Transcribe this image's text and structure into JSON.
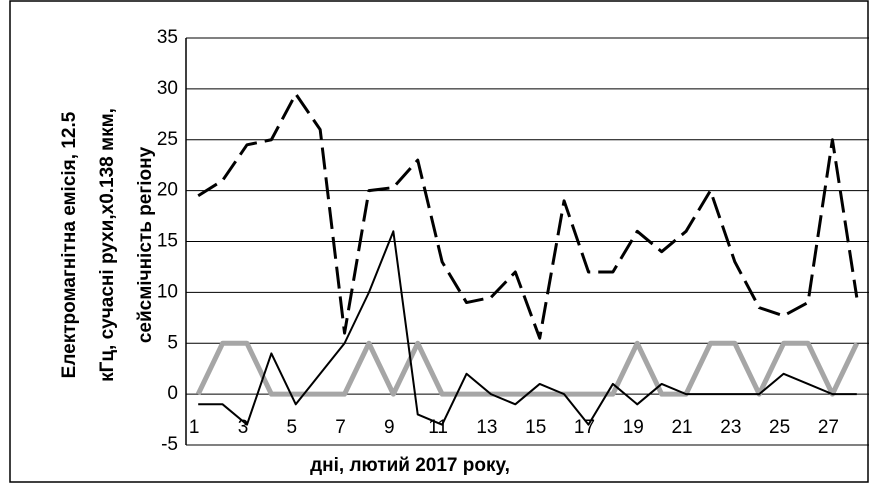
{
  "chart_data": {
    "type": "line",
    "ylabel": [
      "Електромагнітна емісія, 12.5",
      "кГц, сучасні рухи,х0.138 мкм,",
      "сейсмічність регіону"
    ],
    "xlabel": "дні, лютий 2017 року,",
    "categories": [
      "1",
      null,
      "3",
      null,
      "5",
      null,
      "7",
      null,
      "9",
      null,
      "11",
      null,
      "13",
      null,
      "15",
      null,
      "17",
      null,
      "19",
      null,
      "21",
      null,
      "23",
      null,
      "25",
      null,
      "27",
      null
    ],
    "series": [
      {
        "color": "#000000",
        "style": "dashed",
        "values": [
          19.5,
          21,
          24.5,
          25,
          29.5,
          26,
          6,
          20,
          20.3,
          23,
          13,
          9,
          9.5,
          12,
          5.5,
          19,
          12,
          12,
          16,
          14,
          16,
          20,
          13,
          8.5,
          7.7,
          9,
          25,
          9.5
        ]
      },
      {
        "color": "#000000",
        "style": "solid",
        "values": [
          -1,
          -1,
          -3,
          4,
          -1,
          2,
          5,
          10,
          16,
          -2,
          -3,
          2,
          0,
          -1,
          1,
          0,
          -3,
          1,
          -1,
          1,
          0,
          0,
          0,
          0,
          2,
          1,
          0,
          0
        ]
      },
      {
        "color": "#a6a6a6",
        "style": "thick",
        "values": [
          0,
          5,
          5,
          0,
          0,
          0,
          0,
          5,
          0,
          5,
          0,
          0,
          0,
          0,
          0,
          0,
          0,
          0,
          5,
          0,
          0,
          5,
          5,
          0,
          5,
          5,
          0,
          5
        ]
      }
    ],
    "ylim": [
      -5,
      35
    ],
    "yticks": [
      -5,
      0,
      5,
      10,
      15,
      20,
      25,
      30,
      35
    ],
    "grid": true
  }
}
